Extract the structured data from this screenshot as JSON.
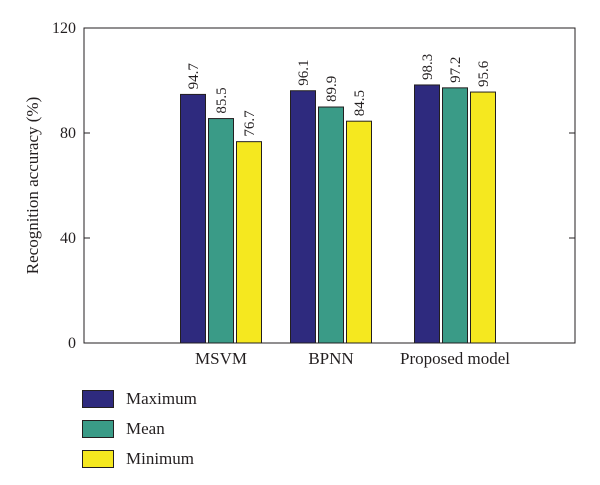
{
  "chart_data": {
    "type": "bar",
    "categories": [
      "MSVM",
      "BPNN",
      "Proposed model"
    ],
    "series": [
      {
        "name": "Maximum",
        "values": [
          94.7,
          96.1,
          98.3
        ],
        "color": "#2e2a7e"
      },
      {
        "name": "Mean",
        "values": [
          85.5,
          89.9,
          97.2
        ],
        "color": "#3a9b87"
      },
      {
        "name": "Minimum",
        "values": [
          76.7,
          84.5,
          95.6
        ],
        "color": "#f5e81f"
      }
    ],
    "value_labels": [
      [
        "94.7",
        "96.1",
        "98.3"
      ],
      [
        "85.5",
        "89.9",
        "97.2"
      ],
      [
        "76.7",
        "84.5",
        "95.6"
      ]
    ],
    "title": "",
    "xlabel": "",
    "ylabel": "Recognition accuracy (%)",
    "ylim": [
      0,
      120
    ],
    "yticks": [
      0,
      40,
      80,
      120
    ],
    "ytick_labels": [
      "0",
      "40",
      "80",
      "120"
    ],
    "grid": false,
    "legend_position": "bottom-left, below chart"
  }
}
